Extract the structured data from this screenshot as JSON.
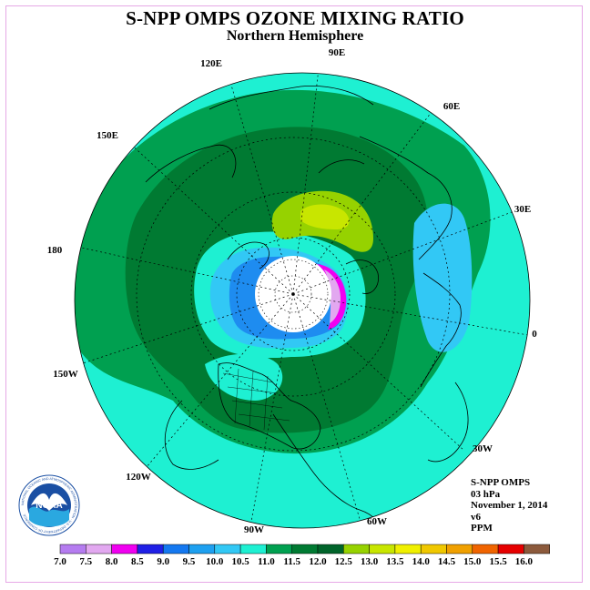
{
  "title": "S-NPP OMPS OZONE MIXING RATIO",
  "subtitle": "Northern Hemisphere",
  "info": {
    "line1": "S-NPP OMPS",
    "line2": "03 hPa",
    "line3": "November 1, 2014",
    "line4": "v6",
    "line5": "PPM"
  },
  "longitudes": {
    "lon_90E": "90E",
    "lon_60E": "60E",
    "lon_30E": "30E",
    "lon_0": "0",
    "lon_30W": "30W",
    "lon_60W": "60W",
    "lon_90W": "90W",
    "lon_120W": "120W",
    "lon_150W": "150W",
    "lon_180": "180",
    "lon_150E": "150E",
    "lon_120E": "120E"
  },
  "colorbar": {
    "labels": [
      "7.0",
      "7.5",
      "8.0",
      "8.5",
      "9.0",
      "9.5",
      "10.0",
      "10.5",
      "11.0",
      "11.5",
      "12.0",
      "12.5",
      "13.0",
      "13.5",
      "14.0",
      "14.5",
      "15.0",
      "15.5",
      "16.0"
    ],
    "colors": [
      "#b57cf0",
      "#e2a8f0",
      "#f000f0",
      "#2020e6",
      "#1478f0",
      "#1ea0f0",
      "#32c8f5",
      "#1ef0d2",
      "#00a050",
      "#007a32",
      "#00642a",
      "#96d200",
      "#c8e600",
      "#f0f000",
      "#f0c800",
      "#f0a000",
      "#f06400",
      "#e60000",
      "#8c5a3c"
    ]
  },
  "logo_text": "NOAA",
  "logo_ring_text": "NATIONAL OCEANIC AND ATMOSPHERIC ADMINISTRATION · U.S. DEPARTMENT OF COMMERCE"
}
